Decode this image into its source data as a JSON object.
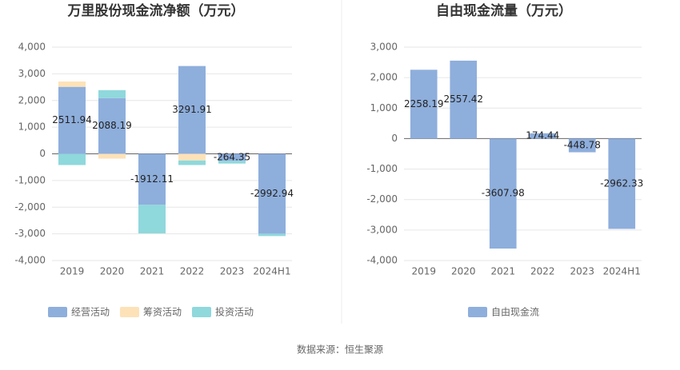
{
  "chart_data": [
    {
      "type": "stacked_bar",
      "title": "万里股份现金流净额（万元）",
      "categories": [
        "2019",
        "2020",
        "2021",
        "2022",
        "2023",
        "2024H1"
      ],
      "series": [
        {
          "name": "经营活动",
          "color": "#8eaedc",
          "values": [
            2511.94,
            2088.19,
            -1912.11,
            3291.91,
            -264.35,
            -2992.94
          ]
        },
        {
          "name": "筹资活动",
          "color": "#fde2b8",
          "values": [
            200,
            -180,
            0,
            -250,
            0,
            0
          ]
        },
        {
          "name": "投资活动",
          "color": "#8fd8dc",
          "values": [
            -420,
            300,
            -1070,
            -170,
            -100,
            -90
          ]
        }
      ],
      "ylim": [
        -4000,
        4000
      ],
      "yticks": [
        {
          "value": -4000,
          "label": "-4,000"
        },
        {
          "value": -3000,
          "label": "-3,000"
        },
        {
          "value": -2000,
          "label": "-2,000"
        },
        {
          "value": -1000,
          "label": "-1,000"
        },
        0,
        {
          "value": 1000,
          "label": "1,000"
        },
        {
          "value": 2000,
          "label": "2,000"
        },
        {
          "value": 3000,
          "label": "3,000"
        },
        {
          "value": 4000,
          "label": "4,000"
        }
      ],
      "grid": true
    },
    {
      "type": "bar",
      "title": "自由现金流量（万元）",
      "categories": [
        "2019",
        "2020",
        "2021",
        "2022",
        "2023",
        "2024H1"
      ],
      "series": [
        {
          "name": "自由现金流",
          "color": "#8eaedc",
          "values": [
            2258.19,
            2557.42,
            -3607.98,
            174.44,
            -448.78,
            -2962.33
          ]
        }
      ],
      "ylim": [
        -4000,
        3000
      ],
      "yticks": [
        {
          "value": -4000,
          "label": "-4,000"
        },
        {
          "value": -3000,
          "label": "-3,000"
        },
        {
          "value": -2000,
          "label": "-2,000"
        },
        {
          "value": -1000,
          "label": "-1,000"
        },
        0,
        {
          "value": 1000,
          "label": "1,000"
        },
        {
          "value": 2000,
          "label": "2,000"
        },
        {
          "value": 3000,
          "label": "3,000"
        }
      ],
      "grid": true
    }
  ],
  "source": "数据来源：恒生聚源"
}
